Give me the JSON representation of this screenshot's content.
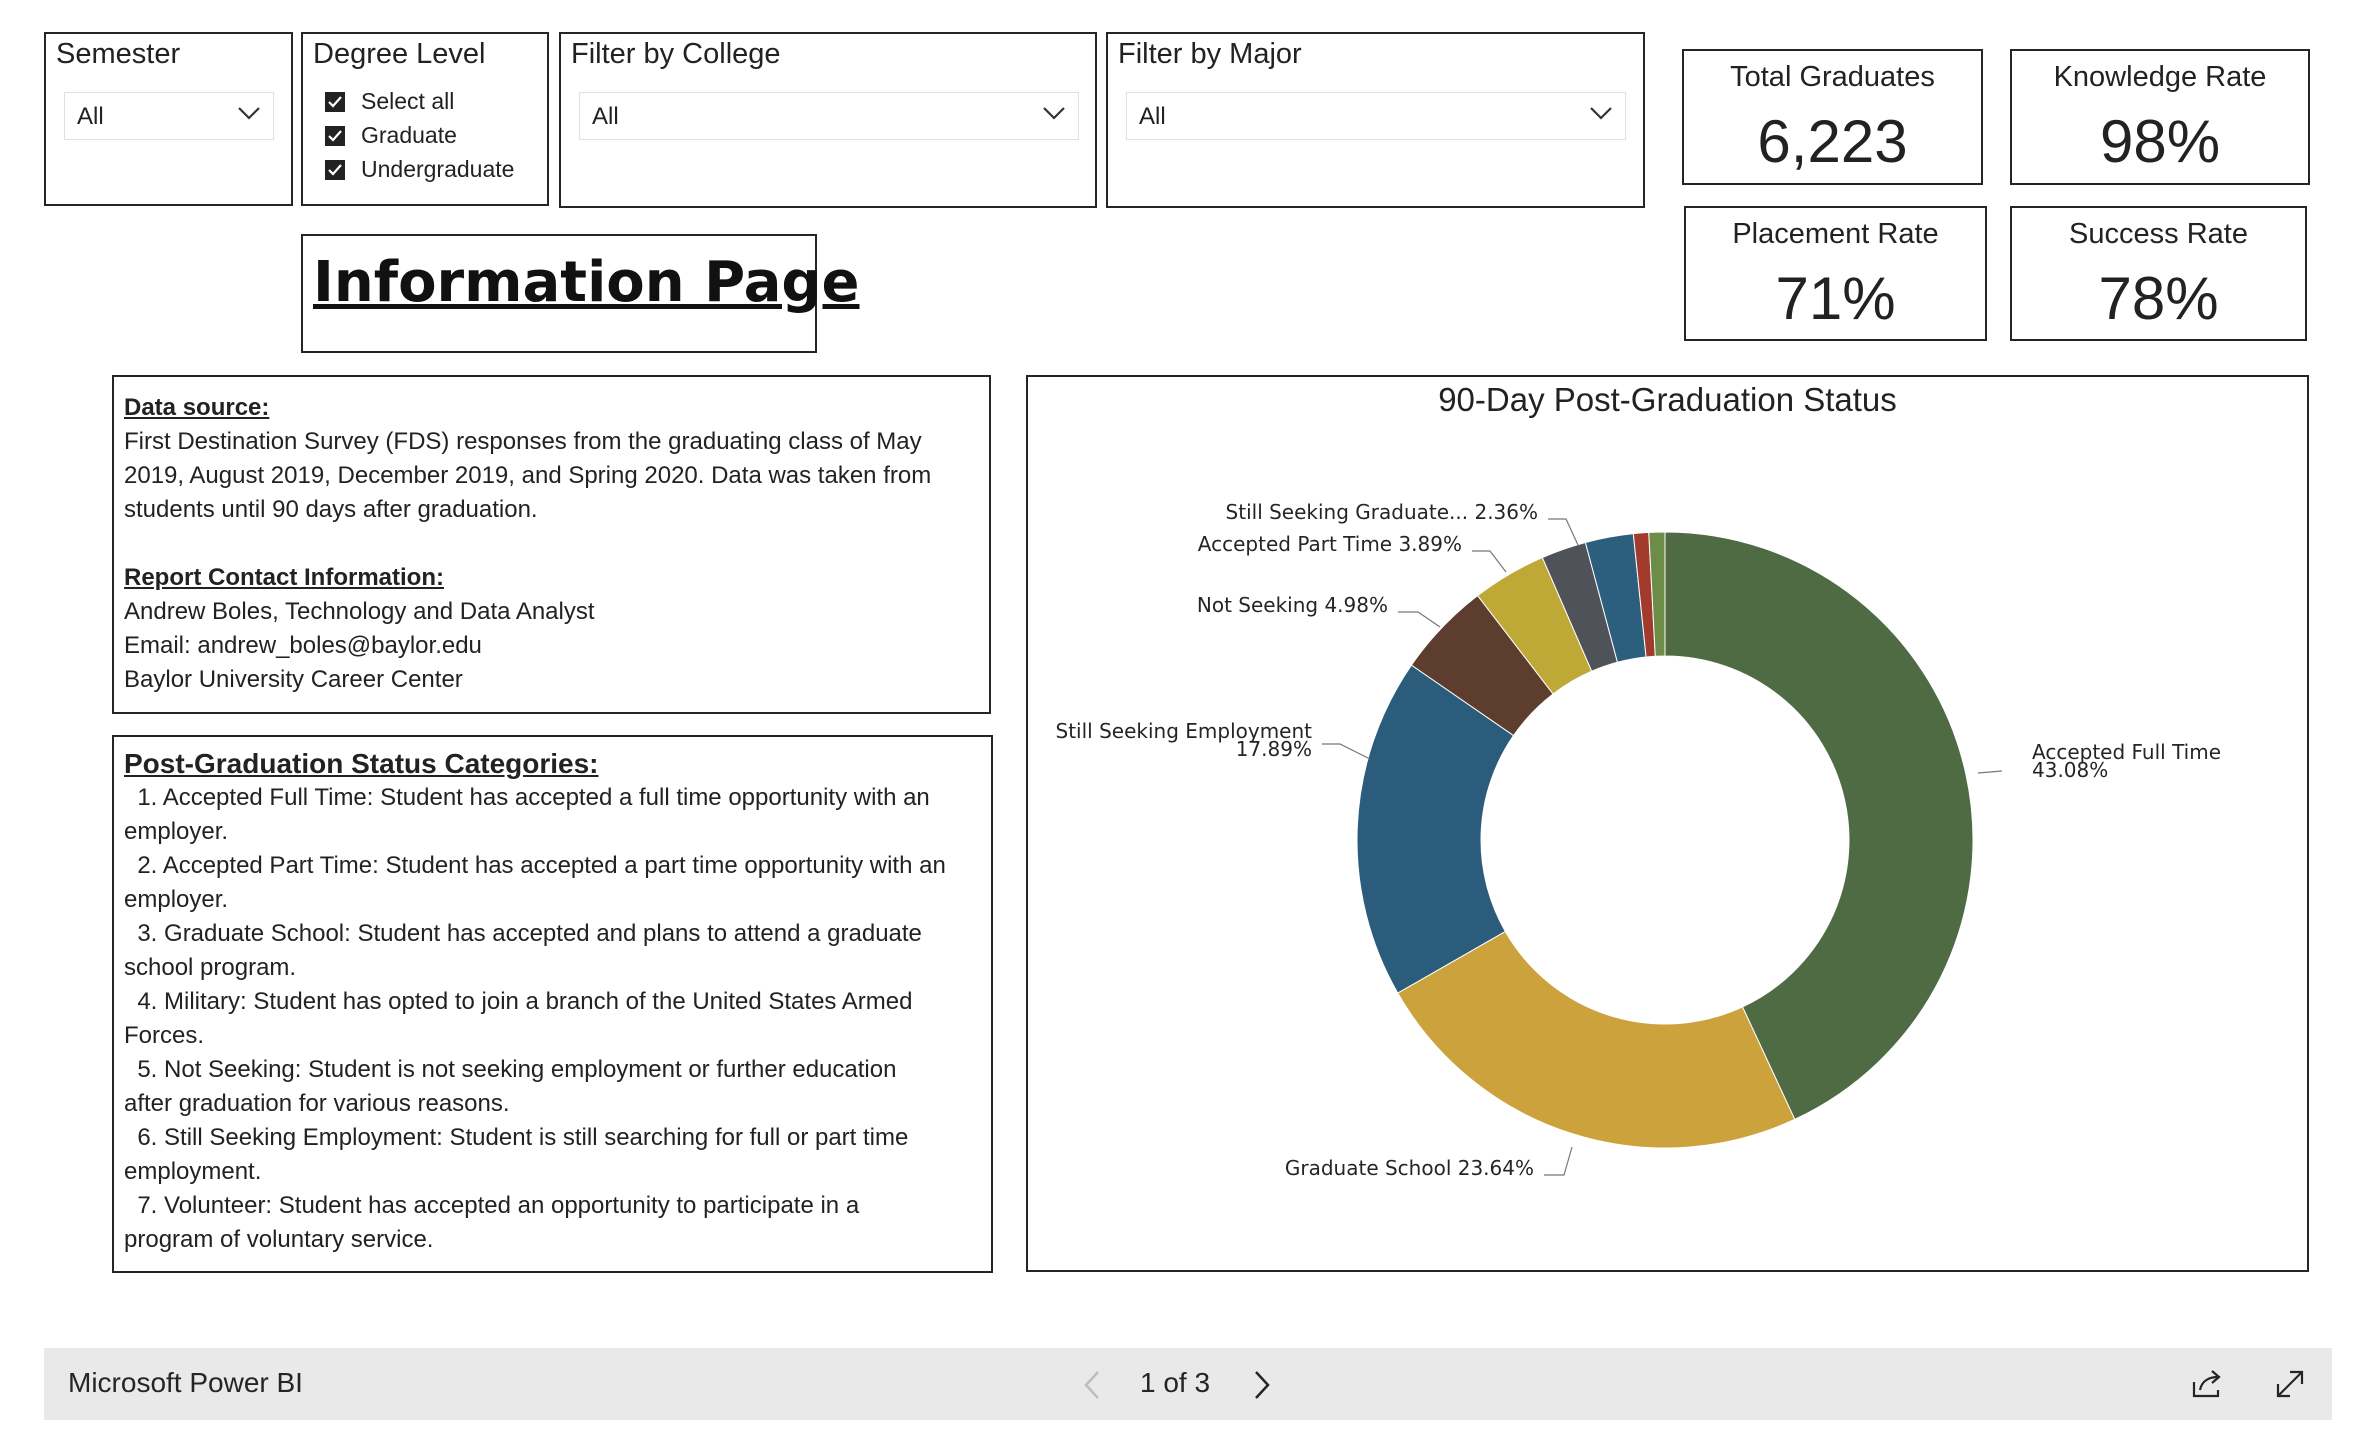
{
  "slicers": {
    "semester": {
      "title": "Semester",
      "value": "All"
    },
    "degree_level": {
      "title": "Degree Level",
      "options": [
        {
          "label": "Select all",
          "checked": true
        },
        {
          "label": "Graduate",
          "checked": true
        },
        {
          "label": "Undergraduate",
          "checked": true
        }
      ]
    },
    "college": {
      "title": "Filter by College",
      "value": "All"
    },
    "major": {
      "title": "Filter by Major",
      "value": "All"
    }
  },
  "kpis": {
    "total_graduates": {
      "title": "Total Graduates",
      "value": "6,223"
    },
    "knowledge_rate": {
      "title": "Knowledge Rate",
      "value": "98%"
    },
    "placement_rate": {
      "title": "Placement Rate",
      "value": "71%"
    },
    "success_rate": {
      "title": "Success Rate",
      "value": "78%"
    }
  },
  "page_title": "Information Page",
  "data_source": {
    "heading": "Data source: ",
    "lines": [
      "First Destination Survey (FDS) responses from the graduating class of May",
      "2019, August 2019, December 2019, and Spring 2020. Data was taken from",
      "students until 90 days after graduation."
    ]
  },
  "contact": {
    "heading": "Report Contact Information:",
    "lines": [
      "Andrew Boles, Technology and Data Analyst",
      "Email: andrew_boles@baylor.edu",
      "Baylor University Career Center"
    ]
  },
  "categories": {
    "heading": "Post-Graduation Status Categories:",
    "lines": [
      "  1. Accepted Full Time: Student has accepted a full time opportunity with an",
      "employer.",
      "  2. Accepted Part Time: Student has accepted a part time opportunity with an",
      "employer.",
      "  3. Graduate School: Student has accepted and plans to attend a graduate",
      "school program.",
      "  4. Military: Student has opted to join a branch of the United States Armed",
      "Forces.",
      "  5. Not Seeking: Student is not seeking employment or further education",
      "after graduation for various reasons.",
      "  6. Still Seeking Employment: Student is still searching for full or part time",
      "employment.",
      "  7. Volunteer: Student has accepted an opportunity to participate in a",
      "program of voluntary service."
    ]
  },
  "chart_data": {
    "type": "pie",
    "variant": "donut",
    "title": "90-Day Post-Graduation Status",
    "slices": [
      {
        "label": "Accepted Full Time",
        "value": 43.08,
        "value_label": "43.08%",
        "color": "#4f6b43"
      },
      {
        "label": "Graduate School",
        "value": 23.64,
        "value_label": "23.64%",
        "color": "#cca23c"
      },
      {
        "label": "Still Seeking Employment",
        "value": 17.89,
        "value_label": "17.89%",
        "color": "#2b5c7b"
      },
      {
        "label": "Not Seeking",
        "value": 4.98,
        "value_label": "4.98%",
        "color": "#5c3d2e"
      },
      {
        "label": "Accepted Part Time",
        "value": 3.89,
        "value_label": "3.89%",
        "color": "#bfa936"
      },
      {
        "label": "Still Seeking Graduate...",
        "value": 2.36,
        "value_label": "2.36%",
        "color": "#4f5359"
      },
      {
        "value": 2.52,
        "color": "#2c5e7e"
      },
      {
        "value": 0.8,
        "color": "#a33b2d"
      },
      {
        "value": 0.84,
        "color": "#6c8c48"
      }
    ]
  },
  "footer": {
    "brand": "Microsoft Power BI",
    "page_indicator": "1 of 3"
  },
  "colors": {
    "footer_bg": "#e9e9e9",
    "border": "#252525"
  }
}
